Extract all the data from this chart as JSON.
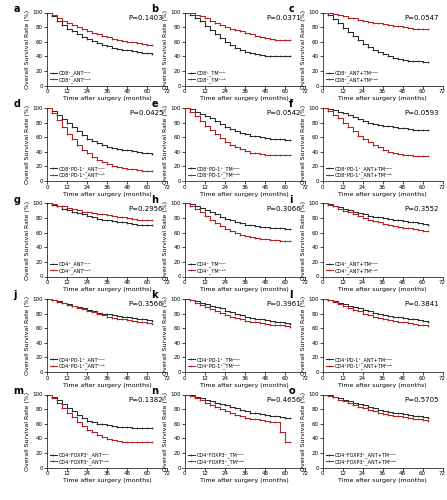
{
  "panels": [
    {
      "label": "a",
      "p": "P=0.1403",
      "leg": [
        "CD8⁺_ANTᴸᴼᵂ",
        "CD8⁺_ANTʰᴵᴳʰ"
      ],
      "bx": [
        0,
        3,
        6,
        9,
        12,
        15,
        18,
        21,
        24,
        27,
        30,
        33,
        36,
        39,
        42,
        45,
        48,
        51,
        54,
        57,
        60,
        63
      ],
      "by": [
        100,
        95,
        88,
        83,
        78,
        74,
        70,
        67,
        64,
        61,
        58,
        56,
        54,
        52,
        50,
        49,
        48,
        47,
        46,
        45,
        44,
        43
      ],
      "rx": [
        0,
        3,
        6,
        9,
        12,
        15,
        18,
        21,
        24,
        27,
        30,
        33,
        36,
        39,
        42,
        45,
        48,
        51,
        54,
        57,
        60,
        63
      ],
      "ry": [
        100,
        97,
        93,
        89,
        86,
        83,
        80,
        77,
        74,
        72,
        70,
        68,
        66,
        64,
        62,
        61,
        60,
        59,
        58,
        57,
        56,
        55
      ]
    },
    {
      "label": "b",
      "p": "P=0.0371",
      "leg": [
        "CD8⁺_TMᴸᴼᵂ",
        "CD8⁺_TMʰᴵᴳʰ"
      ],
      "bx": [
        0,
        3,
        6,
        9,
        12,
        15,
        18,
        21,
        24,
        27,
        30,
        33,
        36,
        39,
        42,
        45,
        48,
        51,
        54,
        57,
        60,
        63
      ],
      "by": [
        100,
        97,
        93,
        88,
        82,
        76,
        70,
        65,
        60,
        56,
        52,
        49,
        46,
        44,
        43,
        42,
        41,
        41,
        41,
        41,
        41,
        41
      ],
      "rx": [
        0,
        3,
        6,
        9,
        12,
        15,
        18,
        21,
        24,
        27,
        30,
        33,
        36,
        39,
        42,
        45,
        48,
        51,
        54,
        57,
        60,
        63
      ],
      "ry": [
        100,
        99,
        97,
        95,
        92,
        89,
        86,
        83,
        80,
        78,
        76,
        74,
        72,
        70,
        68,
        66,
        65,
        64,
        63,
        62,
        62,
        62
      ]
    },
    {
      "label": "c",
      "p": "P=0.0547",
      "leg": [
        "CD8⁺_ANT+TMᴸᴼᵂ",
        "CD8⁺_ANT+TMʰᴵᴳʰ"
      ],
      "bx": [
        0,
        3,
        6,
        9,
        12,
        15,
        18,
        21,
        24,
        27,
        30,
        33,
        36,
        39,
        42,
        45,
        48,
        51,
        54,
        57,
        60,
        63
      ],
      "by": [
        100,
        96,
        91,
        85,
        79,
        73,
        68,
        62,
        57,
        53,
        49,
        46,
        43,
        40,
        38,
        36,
        35,
        34,
        33,
        33,
        32,
        32
      ],
      "rx": [
        0,
        3,
        6,
        9,
        12,
        15,
        18,
        21,
        24,
        27,
        30,
        33,
        36,
        39,
        42,
        45,
        48,
        51,
        54,
        57,
        60,
        63
      ],
      "ry": [
        100,
        99,
        98,
        97,
        95,
        93,
        92,
        90,
        88,
        87,
        86,
        85,
        84,
        83,
        82,
        81,
        80,
        79,
        78,
        78,
        77,
        77
      ]
    },
    {
      "label": "d",
      "p": "P=0.0425",
      "leg": [
        "CD8⁺PD-1⁺_ANTᴸᴼᵂ",
        "CD8⁺PD-1⁺_ANTʰᴵᴳʰ"
      ],
      "bx": [
        0,
        3,
        6,
        9,
        12,
        15,
        18,
        21,
        24,
        27,
        30,
        33,
        36,
        39,
        42,
        45,
        48,
        51,
        54,
        57,
        60,
        63
      ],
      "by": [
        100,
        96,
        91,
        85,
        79,
        74,
        68,
        63,
        58,
        55,
        52,
        49,
        47,
        45,
        44,
        43,
        42,
        41,
        40,
        39,
        38,
        37
      ],
      "rx": [
        0,
        3,
        6,
        9,
        12,
        15,
        18,
        21,
        24,
        27,
        30,
        33,
        36,
        39,
        42,
        45,
        48,
        51,
        54,
        57,
        60,
        63
      ],
      "ry": [
        100,
        93,
        84,
        74,
        65,
        57,
        50,
        43,
        38,
        33,
        29,
        26,
        23,
        21,
        19,
        18,
        17,
        16,
        15,
        14,
        14,
        14
      ]
    },
    {
      "label": "e",
      "p": "P=0.0542",
      "leg": [
        "CD8⁺PD-1⁺_TMᴸᴼᵂ",
        "CD8⁺PD-1⁺_TMʰᴵᴳʰ"
      ],
      "bx": [
        0,
        3,
        6,
        9,
        12,
        15,
        18,
        21,
        24,
        27,
        30,
        33,
        36,
        39,
        42,
        45,
        48,
        51,
        54,
        57,
        60,
        63
      ],
      "by": [
        100,
        98,
        95,
        92,
        89,
        86,
        82,
        78,
        74,
        71,
        68,
        66,
        64,
        62,
        61,
        60,
        59,
        58,
        57,
        57,
        56,
        56
      ],
      "rx": [
        0,
        3,
        6,
        9,
        12,
        15,
        18,
        21,
        24,
        27,
        30,
        33,
        36,
        39,
        42,
        45,
        48,
        51,
        54,
        57,
        60,
        63
      ],
      "ry": [
        100,
        95,
        89,
        82,
        76,
        70,
        64,
        59,
        54,
        50,
        47,
        44,
        41,
        39,
        38,
        37,
        36,
        35,
        35,
        35,
        35,
        35
      ]
    },
    {
      "label": "f",
      "p": "P=0.0593",
      "leg": [
        "CD8⁺PD-1⁺_ANT+TMᴸᴼᵂ",
        "CD8⁺PD-1⁺_ANT+TMʰᴵᴳʰ"
      ],
      "bx": [
        0,
        3,
        6,
        9,
        12,
        15,
        18,
        21,
        24,
        27,
        30,
        33,
        36,
        39,
        42,
        45,
        48,
        51,
        54,
        57,
        60,
        63
      ],
      "by": [
        100,
        99,
        97,
        95,
        93,
        91,
        88,
        85,
        82,
        80,
        78,
        77,
        76,
        75,
        74,
        73,
        72,
        71,
        70,
        70,
        70,
        70
      ],
      "rx": [
        0,
        3,
        6,
        9,
        12,
        15,
        18,
        21,
        24,
        27,
        30,
        33,
        36,
        39,
        42,
        45,
        48,
        51,
        54,
        57,
        60,
        63
      ],
      "ry": [
        100,
        96,
        91,
        86,
        80,
        74,
        68,
        62,
        57,
        53,
        49,
        46,
        43,
        40,
        38,
        37,
        36,
        35,
        34,
        34,
        34,
        34
      ]
    },
    {
      "label": "g",
      "p": "P=0.2956",
      "leg": [
        "CD4⁺_ANTᴸᴼᵂ",
        "CD4⁺_ANTʰᴵᴳʰ"
      ],
      "bx": [
        0,
        3,
        6,
        9,
        12,
        15,
        18,
        21,
        24,
        27,
        30,
        33,
        36,
        39,
        42,
        45,
        48,
        51,
        54,
        57,
        60,
        63
      ],
      "by": [
        100,
        98,
        96,
        93,
        91,
        89,
        87,
        85,
        83,
        81,
        79,
        78,
        77,
        76,
        75,
        74,
        73,
        72,
        71,
        71,
        70,
        70
      ],
      "rx": [
        0,
        3,
        6,
        9,
        12,
        15,
        18,
        21,
        24,
        27,
        30,
        33,
        36,
        39,
        42,
        45,
        48,
        51,
        54,
        57,
        60,
        63
      ],
      "ry": [
        100,
        99,
        97,
        96,
        94,
        92,
        91,
        89,
        88,
        87,
        86,
        85,
        84,
        83,
        82,
        81,
        80,
        79,
        78,
        78,
        77,
        77
      ]
    },
    {
      "label": "h",
      "p": "P=0.3066",
      "leg": [
        "CD4⁺_TMᴸᴼᵂ",
        "CD4⁺_TMʰᴵᴳʰ"
      ],
      "bx": [
        0,
        3,
        6,
        9,
        12,
        15,
        18,
        21,
        24,
        27,
        30,
        33,
        36,
        39,
        42,
        45,
        48,
        51,
        54,
        57,
        60,
        63
      ],
      "by": [
        100,
        99,
        97,
        94,
        91,
        88,
        85,
        82,
        79,
        77,
        75,
        73,
        71,
        70,
        69,
        68,
        68,
        67,
        67,
        66,
        65,
        65
      ],
      "rx": [
        0,
        3,
        6,
        9,
        12,
        15,
        18,
        21,
        24,
        27,
        30,
        33,
        36,
        39,
        42,
        45,
        48,
        51,
        54,
        57,
        60,
        63
      ],
      "ry": [
        100,
        97,
        93,
        88,
        83,
        78,
        73,
        69,
        65,
        62,
        59,
        57,
        55,
        54,
        53,
        52,
        51,
        50,
        50,
        49,
        49,
        49
      ]
    },
    {
      "label": "i",
      "p": "P=0.3552",
      "leg": [
        "CD4⁺_ANT+TMᴸᴼᵂ",
        "CD4⁺_ANT+TMʰᴵᴳʰ"
      ],
      "bx": [
        0,
        3,
        6,
        9,
        12,
        15,
        18,
        21,
        24,
        27,
        30,
        33,
        36,
        39,
        42,
        45,
        48,
        51,
        54,
        57,
        60,
        63
      ],
      "by": [
        100,
        99,
        97,
        95,
        93,
        91,
        89,
        87,
        85,
        83,
        82,
        81,
        80,
        79,
        78,
        77,
        76,
        75,
        74,
        73,
        72,
        71
      ],
      "rx": [
        0,
        3,
        6,
        9,
        12,
        15,
        18,
        21,
        24,
        27,
        30,
        33,
        36,
        39,
        42,
        45,
        48,
        51,
        54,
        57,
        60,
        63
      ],
      "ry": [
        100,
        98,
        96,
        93,
        90,
        88,
        85,
        83,
        80,
        78,
        76,
        74,
        72,
        70,
        69,
        68,
        67,
        66,
        65,
        64,
        63,
        62
      ]
    },
    {
      "label": "j",
      "p": "P=0.3566",
      "leg": [
        "CD4⁺PD-1⁺_ANTᴸᴼᵂ",
        "CD4⁺PD-1⁺_ANTʰᴵᴳʰ"
      ],
      "bx": [
        0,
        3,
        6,
        9,
        12,
        15,
        18,
        21,
        24,
        27,
        30,
        33,
        36,
        39,
        42,
        45,
        48,
        51,
        54,
        57,
        60,
        63
      ],
      "by": [
        100,
        99,
        97,
        95,
        93,
        91,
        89,
        87,
        85,
        83,
        81,
        80,
        79,
        78,
        77,
        76,
        75,
        74,
        73,
        72,
        71,
        70
      ],
      "rx": [
        0,
        3,
        6,
        9,
        12,
        15,
        18,
        21,
        24,
        27,
        30,
        33,
        36,
        39,
        42,
        45,
        48,
        51,
        54,
        57,
        60,
        63
      ],
      "ry": [
        100,
        98,
        96,
        94,
        92,
        90,
        88,
        86,
        84,
        82,
        80,
        78,
        76,
        74,
        73,
        72,
        71,
        70,
        69,
        68,
        67,
        66
      ]
    },
    {
      "label": "k",
      "p": "P=0.3961",
      "leg": [
        "CD4⁺PD-1⁺_TMᴸᴼᵂ",
        "CD4⁺PD-1⁺_TMʰᴵᴳʰ"
      ],
      "bx": [
        0,
        3,
        6,
        9,
        12,
        15,
        18,
        21,
        24,
        27,
        30,
        33,
        36,
        39,
        42,
        45,
        48,
        51,
        54,
        57,
        60,
        63
      ],
      "by": [
        100,
        99,
        97,
        95,
        93,
        91,
        89,
        87,
        84,
        82,
        80,
        78,
        76,
        74,
        73,
        72,
        71,
        70,
        69,
        68,
        67,
        66
      ],
      "rx": [
        0,
        3,
        6,
        9,
        12,
        15,
        18,
        21,
        24,
        27,
        30,
        33,
        36,
        39,
        42,
        45,
        48,
        51,
        54,
        57,
        60,
        63
      ],
      "ry": [
        100,
        98,
        95,
        92,
        89,
        86,
        83,
        81,
        78,
        76,
        74,
        72,
        70,
        69,
        68,
        67,
        66,
        65,
        64,
        64,
        63,
        62
      ]
    },
    {
      "label": "l",
      "p": "P=0.3841",
      "leg": [
        "CD4⁺PD-1⁺_ANT+TMᴸᴼᵂ",
        "CD4⁺PD-1⁺_ANT+TMʰᴵᴳʰ"
      ],
      "bx": [
        0,
        3,
        6,
        9,
        12,
        15,
        18,
        21,
        24,
        27,
        30,
        33,
        36,
        39,
        42,
        45,
        48,
        51,
        54,
        57,
        60,
        63
      ],
      "by": [
        100,
        99,
        97,
        95,
        93,
        91,
        89,
        87,
        85,
        83,
        81,
        79,
        78,
        77,
        76,
        75,
        74,
        73,
        72,
        71,
        70,
        69
      ],
      "rx": [
        0,
        3,
        6,
        9,
        12,
        15,
        18,
        21,
        24,
        27,
        30,
        33,
        36,
        39,
        42,
        45,
        48,
        51,
        54,
        57,
        60,
        63
      ],
      "ry": [
        100,
        98,
        96,
        93,
        91,
        88,
        85,
        83,
        80,
        78,
        76,
        74,
        72,
        71,
        70,
        69,
        68,
        67,
        66,
        65,
        64,
        63
      ]
    },
    {
      "label": "m",
      "p": "P=0.1382",
      "leg": [
        "CD4⁺FOXP3⁺_ANTᴸᴼᵂ",
        "CD4⁺FOXP3⁺_ANTʰᴵᴳʰ"
      ],
      "bx": [
        0,
        3,
        6,
        9,
        12,
        15,
        18,
        21,
        24,
        27,
        30,
        33,
        36,
        39,
        42,
        45,
        48,
        51,
        54,
        57,
        60,
        63
      ],
      "by": [
        100,
        97,
        92,
        87,
        82,
        77,
        72,
        68,
        64,
        62,
        60,
        59,
        58,
        57,
        56,
        55,
        55,
        54,
        54,
        54,
        54,
        54
      ],
      "rx": [
        0,
        3,
        6,
        9,
        12,
        15,
        18,
        21,
        24,
        27,
        30,
        33,
        36,
        39,
        42,
        45,
        48,
        51,
        54,
        57,
        60,
        63
      ],
      "ry": [
        100,
        95,
        89,
        82,
        75,
        69,
        63,
        57,
        52,
        48,
        45,
        42,
        39,
        37,
        36,
        35,
        35,
        35,
        35,
        35,
        35,
        35
      ]
    },
    {
      "label": "n",
      "p": "P=0.4656",
      "leg": [
        "CD4⁺FOXP3⁺_TMᴸᴼᵂ",
        "CD4⁺FOXP3⁺_TMʰᴵᴳʰ"
      ],
      "bx": [
        0,
        3,
        6,
        9,
        12,
        15,
        18,
        21,
        24,
        27,
        30,
        33,
        36,
        39,
        42,
        45,
        48,
        51,
        54,
        57,
        60,
        63
      ],
      "by": [
        100,
        99,
        97,
        95,
        93,
        91,
        89,
        87,
        85,
        83,
        81,
        79,
        77,
        75,
        74,
        73,
        72,
        71,
        70,
        69,
        68,
        68
      ],
      "rx": [
        0,
        3,
        6,
        9,
        12,
        15,
        18,
        21,
        24,
        27,
        30,
        33,
        36,
        39,
        42,
        45,
        48,
        51,
        54,
        57,
        60,
        63
      ],
      "ry": [
        100,
        98,
        95,
        92,
        89,
        86,
        83,
        80,
        77,
        75,
        72,
        70,
        68,
        67,
        66,
        65,
        64,
        63,
        62,
        48,
        35,
        35
      ]
    },
    {
      "label": "o",
      "p": "P=0.5705",
      "leg": [
        "CD4⁺FOXP3⁺_ANT+TMᴸᴼᵂ",
        "CD4⁺FOXP3⁺_ANT+TMʰᴵᴳʰ"
      ],
      "bx": [
        0,
        3,
        6,
        9,
        12,
        15,
        18,
        21,
        24,
        27,
        30,
        33,
        36,
        39,
        42,
        45,
        48,
        51,
        54,
        57,
        60,
        63
      ],
      "by": [
        100,
        99,
        97,
        95,
        93,
        91,
        89,
        87,
        85,
        83,
        81,
        79,
        77,
        76,
        75,
        74,
        73,
        72,
        71,
        70,
        69,
        68
      ],
      "rx": [
        0,
        3,
        6,
        9,
        12,
        15,
        18,
        21,
        24,
        27,
        30,
        33,
        36,
        39,
        42,
        45,
        48,
        51,
        54,
        57,
        60,
        63
      ],
      "ry": [
        100,
        98,
        96,
        93,
        91,
        88,
        86,
        83,
        81,
        79,
        77,
        75,
        73,
        72,
        71,
        70,
        69,
        68,
        67,
        66,
        65,
        64
      ]
    }
  ],
  "xlabel": "Time after surgery (months)",
  "ylabel": "Overall Survival Rate (%)",
  "xticks": [
    0,
    12,
    24,
    36,
    48,
    60,
    72
  ],
  "yticks": [
    0,
    20,
    40,
    60,
    80,
    100
  ],
  "xlim": [
    0,
    72
  ],
  "ylim": [
    0,
    100
  ],
  "black_color": "#2b2b2b",
  "red_color": "#b22222",
  "linewidth": 0.75,
  "tick_fontsize": 4.0,
  "label_fontsize": 4.5,
  "legend_fontsize": 3.5,
  "pval_fontsize": 5.0,
  "panel_label_fontsize": 7.0
}
